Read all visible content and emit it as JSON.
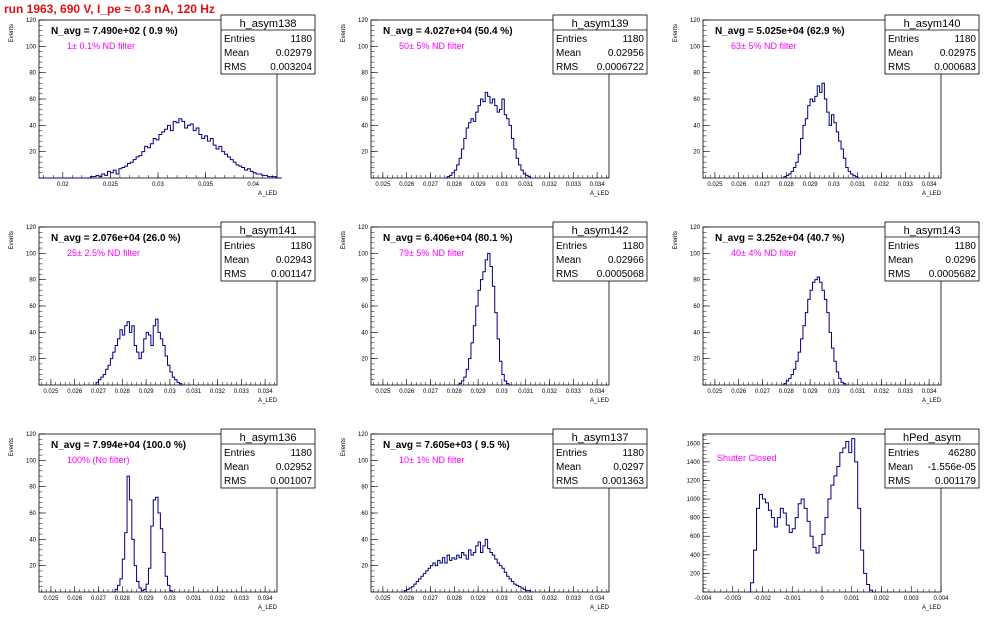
{
  "header": {
    "title": "run 1963,   690 V, I_pe ≈ 0.3 nA, 120 Hz"
  },
  "colors": {
    "title": "#e01010",
    "histogram_line": "#000080",
    "filter_label": "#ff00ff"
  },
  "chart_data": [
    {
      "type": "bar",
      "name": "h_asym138",
      "navg": "N_avg = 7.490e+02 ( 0.9 %)",
      "filter": "1± 0.1% ND filter",
      "stats": {
        "entries": "1180",
        "mean": "0.02979",
        "rms": "0.003204"
      },
      "stat_labels": [
        "Entries",
        "Mean",
        "RMS"
      ],
      "xlim": [
        0.0175,
        0.0425
      ],
      "ylim": [
        0,
        120
      ],
      "xticks": [
        "0.02",
        "0.025",
        "0.03",
        "0.035",
        "0.04"
      ],
      "yticks": [
        "20",
        "40",
        "60",
        "80",
        "100",
        "120"
      ],
      "ylabel": "Events",
      "xlabel": "A_LED",
      "x_start": 0.0175,
      "bin_width": 0.0003,
      "values": [
        0,
        0,
        0,
        0,
        0,
        0,
        0,
        0,
        0,
        0,
        0,
        0,
        0,
        0,
        0,
        0,
        0,
        0,
        1,
        1,
        2,
        1,
        3,
        2,
        5,
        4,
        6,
        3,
        7,
        8,
        9,
        11,
        12,
        14,
        16,
        17,
        20,
        24,
        23,
        26,
        30,
        29,
        33,
        35,
        37,
        40,
        36,
        43,
        42,
        45,
        43,
        38,
        40,
        41,
        36,
        38,
        33,
        30,
        32,
        28,
        30,
        25,
        22,
        24,
        20,
        18,
        16,
        14,
        12,
        10,
        9,
        8,
        6,
        7,
        5,
        4,
        3,
        3,
        2,
        2,
        1,
        1,
        1,
        0,
        0
      ]
    },
    {
      "type": "bar",
      "name": "h_asym139",
      "navg": "N_avg = 4.027e+04 (50.4 %)",
      "filter": "50± 5% ND filter",
      "stats": {
        "entries": "1180",
        "mean": "0.02956",
        "rms": "0.0006722"
      },
      "stat_labels": [
        "Entries",
        "Mean",
        "RMS"
      ],
      "xlim": [
        0.0245,
        0.0345
      ],
      "ylim": [
        0,
        120
      ],
      "xticks": [
        "0.025",
        "0.026",
        "0.027",
        "0.028",
        "0.029",
        "0.03",
        "0.031",
        "0.032",
        "0.033",
        "0.034"
      ],
      "yticks": [
        "20",
        "40",
        "60",
        "80",
        "100",
        "120"
      ],
      "ylabel": "Events",
      "xlabel": "A_LED",
      "x_start": 0.0276,
      "bin_width": 0.0001,
      "values": [
        0,
        1,
        2,
        4,
        6,
        10,
        15,
        22,
        30,
        38,
        42,
        45,
        43,
        50,
        55,
        60,
        58,
        65,
        62,
        57,
        60,
        55,
        50,
        52,
        60,
        48,
        45,
        40,
        30,
        22,
        15,
        10,
        6,
        3,
        2,
        1,
        0
      ]
    },
    {
      "type": "bar",
      "name": "h_asym140",
      "navg": "N_avg = 5.025e+04 (62.9 %)",
      "filter": "63± 5% ND filter",
      "stats": {
        "entries": "1180",
        "mean": "0.02975",
        "rms": "0.000683"
      },
      "stat_labels": [
        "Entries",
        "Mean",
        "RMS"
      ],
      "xlim": [
        0.0245,
        0.0345
      ],
      "ylim": [
        0,
        120
      ],
      "xticks": [
        "0.025",
        "0.026",
        "0.027",
        "0.028",
        "0.029",
        "0.03",
        "0.031",
        "0.032",
        "0.033",
        "0.034"
      ],
      "yticks": [
        "20",
        "40",
        "60",
        "80",
        "100",
        "120"
      ],
      "ylabel": "Events",
      "xlabel": "A_LED",
      "x_start": 0.0278,
      "bin_width": 0.0001,
      "values": [
        0,
        1,
        2,
        3,
        5,
        8,
        12,
        18,
        30,
        40,
        45,
        55,
        60,
        58,
        62,
        70,
        65,
        72,
        60,
        50,
        40,
        48,
        42,
        35,
        28,
        22,
        15,
        8,
        5,
        3,
        2,
        1,
        0
      ]
    },
    {
      "type": "bar",
      "name": "h_asym141",
      "navg": "N_avg = 2.076e+04 (26.0 %)",
      "filter": "25± 2.5% ND filter",
      "stats": {
        "entries": "1180",
        "mean": "0.02943",
        "rms": "0.001147"
      },
      "stat_labels": [
        "Entries",
        "Mean",
        "RMS"
      ],
      "xlim": [
        0.0245,
        0.0345
      ],
      "ylim": [
        0,
        120
      ],
      "xticks": [
        "0.025",
        "0.026",
        "0.027",
        "0.028",
        "0.029",
        "0.03",
        "0.031",
        "0.032",
        "0.033",
        "0.034"
      ],
      "yticks": [
        "20",
        "40",
        "60",
        "80",
        "100",
        "120"
      ],
      "ylabel": "Events",
      "xlabel": "A_LED",
      "x_start": 0.0268,
      "bin_width": 0.0001,
      "values": [
        0,
        2,
        4,
        6,
        8,
        12,
        15,
        20,
        25,
        30,
        35,
        42,
        38,
        45,
        48,
        40,
        45,
        30,
        25,
        20,
        25,
        35,
        40,
        38,
        30,
        45,
        50,
        40,
        35,
        30,
        22,
        15,
        10,
        6,
        4,
        2,
        1,
        0
      ]
    },
    {
      "type": "bar",
      "name": "h_asym142",
      "navg": "N_avg = 6.406e+04 (80.1 %)",
      "filter": "79± 5% ND filter",
      "stats": {
        "entries": "1180",
        "mean": "0.02966",
        "rms": "0.0005068"
      },
      "stat_labels": [
        "Entries",
        "Mean",
        "RMS"
      ],
      "xlim": [
        0.0245,
        0.0345
      ],
      "ylim": [
        0,
        120
      ],
      "xticks": [
        "0.025",
        "0.026",
        "0.027",
        "0.028",
        "0.029",
        "0.03",
        "0.031",
        "0.032",
        "0.033",
        "0.034"
      ],
      "yticks": [
        "20",
        "40",
        "60",
        "80",
        "100",
        "120"
      ],
      "ylabel": "Events",
      "xlabel": "A_LED",
      "x_start": 0.0281,
      "bin_width": 0.0001,
      "values": [
        0,
        1,
        3,
        6,
        12,
        20,
        32,
        45,
        60,
        72,
        80,
        86,
        95,
        100,
        90,
        75,
        55,
        35,
        18,
        8,
        3,
        1,
        0
      ]
    },
    {
      "type": "bar",
      "name": "h_asym143",
      "navg": "N_avg = 3.252e+04 (40.7 %)",
      "filter": "40± 4% ND filter",
      "stats": {
        "entries": "1180",
        "mean": "0.0296",
        "rms": "0.0005682"
      },
      "stat_labels": [
        "Entries",
        "Mean",
        "RMS"
      ],
      "xlim": [
        0.0245,
        0.0345
      ],
      "ylim": [
        0,
        120
      ],
      "xticks": [
        "0.025",
        "0.026",
        "0.027",
        "0.028",
        "0.029",
        "0.03",
        "0.031",
        "0.032",
        "0.033",
        "0.034"
      ],
      "yticks": [
        "20",
        "40",
        "60",
        "80",
        "100",
        "120"
      ],
      "ylabel": "Events",
      "xlabel": "A_LED",
      "x_start": 0.0278,
      "bin_width": 0.0001,
      "values": [
        0,
        1,
        3,
        5,
        8,
        12,
        18,
        25,
        35,
        45,
        55,
        65,
        72,
        78,
        80,
        82,
        78,
        72,
        65,
        55,
        40,
        28,
        18,
        10,
        5,
        2,
        1,
        0
      ]
    },
    {
      "type": "bar",
      "name": "h_asym136",
      "navg": "N_avg = 7.994e+04 (100.0 %)",
      "filter": "100% (No filter)",
      "stats": {
        "entries": "1180",
        "mean": "0.02952",
        "rms": "0.001007"
      },
      "stat_labels": [
        "Entries",
        "Mean",
        "RMS"
      ],
      "xlim": [
        0.0245,
        0.0345
      ],
      "ylim": [
        0,
        120
      ],
      "xticks": [
        "0.025",
        "0.026",
        "0.027",
        "0.028",
        "0.029",
        "0.03",
        "0.031",
        "0.032",
        "0.033",
        "0.034"
      ],
      "yticks": [
        "20",
        "40",
        "60",
        "80",
        "100",
        "120"
      ],
      "ylabel": "Events",
      "xlabel": "A_LED",
      "x_start": 0.0276,
      "bin_width": 0.0001,
      "values": [
        0,
        2,
        5,
        10,
        25,
        45,
        88,
        70,
        40,
        20,
        8,
        3,
        1,
        2,
        6,
        18,
        50,
        70,
        72,
        60,
        48,
        30,
        12,
        5,
        1,
        0
      ]
    },
    {
      "type": "bar",
      "name": "h_asym137",
      "navg": "N_avg = 7.605e+03 ( 9.5 %)",
      "filter": "10± 1% ND filter",
      "stats": {
        "entries": "1180",
        "mean": "0.0297",
        "rms": "0.001363"
      },
      "stat_labels": [
        "Entries",
        "Mean",
        "RMS"
      ],
      "xlim": [
        0.0245,
        0.0345
      ],
      "ylim": [
        0,
        120
      ],
      "xticks": [
        "0.025",
        "0.026",
        "0.027",
        "0.028",
        "0.029",
        "0.03",
        "0.031",
        "0.032",
        "0.033",
        "0.034"
      ],
      "yticks": [
        "20",
        "40",
        "60",
        "80",
        "100",
        "120"
      ],
      "ylabel": "Events",
      "xlabel": "A_LED",
      "x_start": 0.0258,
      "bin_width": 0.0001,
      "values": [
        0,
        1,
        2,
        3,
        4,
        6,
        8,
        10,
        12,
        14,
        16,
        18,
        20,
        22,
        20,
        24,
        22,
        26,
        22,
        28,
        24,
        26,
        25,
        28,
        26,
        30,
        28,
        25,
        32,
        28,
        30,
        35,
        38,
        30,
        35,
        40,
        33,
        30,
        28,
        25,
        22,
        20,
        18,
        15,
        12,
        10,
        8,
        6,
        5,
        4,
        3,
        2,
        1,
        1,
        0
      ]
    },
    {
      "type": "bar",
      "name": "hPed_asym",
      "navg": "",
      "filter": "Shutter Closed",
      "stats": {
        "entries": "46280",
        "mean": "-1.556e-05",
        "rms": "0.001179"
      },
      "stat_labels": [
        "Entries",
        "Mean",
        "RMS"
      ],
      "xlim": [
        -0.004,
        0.004
      ],
      "ylim": [
        0,
        1700
      ],
      "xticks": [
        "-0.004",
        "-0.003",
        "-0.002",
        "-0.001",
        "0",
        "0.001",
        "0.002",
        "0.003",
        "0.004"
      ],
      "yticks": [
        "200",
        "400",
        "600",
        "800",
        "1000",
        "1200",
        "1400",
        "1600"
      ],
      "ylabel": "",
      "xlabel": "A_LED",
      "x_start": -0.0025,
      "bin_width": 0.0001,
      "values": [
        0,
        100,
        450,
        900,
        1050,
        1000,
        960,
        880,
        800,
        700,
        800,
        900,
        850,
        720,
        640,
        680,
        800,
        950,
        1000,
        900,
        760,
        600,
        480,
        420,
        500,
        620,
        800,
        1000,
        1150,
        1250,
        1350,
        1500,
        1550,
        1620,
        1500,
        1650,
        1400,
        900,
        450,
        200,
        80,
        20,
        0
      ]
    }
  ]
}
